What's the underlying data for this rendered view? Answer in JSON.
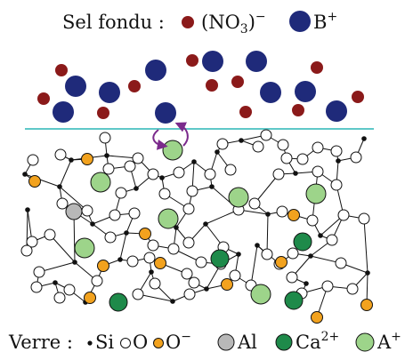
{
  "top_legend": {
    "title": "Sel fondu :",
    "nitrate_label": "(NO",
    "nitrate_sub": "3",
    "nitrate_close": ")",
    "nitrate_charge": "−",
    "cation_label": "B",
    "cation_charge": "+"
  },
  "bottom_legend": {
    "title": "Verre :",
    "si_label": "Si",
    "o_label": "O",
    "o_minus_label": "O",
    "o_minus_charge": "−",
    "al_label": "Al",
    "ca_label": "Ca",
    "ca_charge": "2+",
    "a_label": "A",
    "a_charge": "+"
  },
  "colors": {
    "nitrate": "#8b1a1a",
    "cation_b": "#1f2a7a",
    "interface_line": "#5fc8c8",
    "exchange_arrow": "#7b2a8c",
    "si": "#111111",
    "oxygen": "#ffffff",
    "o_minus": "#f2a21e",
    "aluminium": "#b8b8b8",
    "calcium": "#1e8a4a",
    "cation_a": "#9dd48a"
  }
}
